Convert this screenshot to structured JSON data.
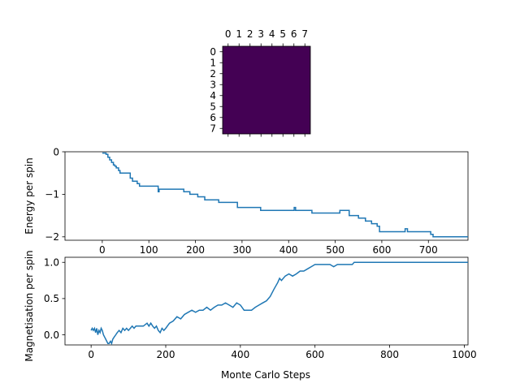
{
  "chart_data": [
    {
      "type": "heatmap",
      "rows": 8,
      "cols": 8,
      "values": [
        [
          1,
          1,
          1,
          1,
          1,
          1,
          1,
          1
        ],
        [
          1,
          1,
          1,
          1,
          1,
          1,
          1,
          1
        ],
        [
          1,
          1,
          1,
          1,
          1,
          1,
          1,
          1
        ],
        [
          1,
          1,
          1,
          1,
          1,
          1,
          1,
          1
        ],
        [
          1,
          1,
          1,
          1,
          1,
          1,
          1,
          1
        ],
        [
          1,
          1,
          1,
          1,
          1,
          1,
          1,
          1
        ],
        [
          1,
          1,
          1,
          1,
          1,
          1,
          1,
          1
        ],
        [
          1,
          1,
          1,
          1,
          1,
          1,
          1,
          1
        ]
      ],
      "x_ticks": [
        "0",
        "1",
        "2",
        "3",
        "4",
        "5",
        "6",
        "7"
      ],
      "y_ticks": [
        "0",
        "1",
        "2",
        "3",
        "4",
        "5",
        "6",
        "7"
      ],
      "x_tick_position": "top",
      "colormap": "viridis",
      "fill_color": "#440154"
    },
    {
      "type": "line",
      "ylabel": "Energy per spin",
      "xlim": [
        -80,
        785
      ],
      "ylim": [
        -2.08,
        0.0
      ],
      "xticks": [
        0,
        100,
        200,
        300,
        400,
        500,
        600,
        700
      ],
      "yticks": [
        0,
        -1,
        -2
      ],
      "ytick_labels": [
        "0",
        "−1",
        "−2"
      ],
      "line_color": "#1f77b4",
      "series": [
        {
          "x": [
            0,
            5,
            8,
            12,
            16,
            20,
            24,
            27,
            30,
            35,
            38,
            42,
            60,
            65,
            75,
            80,
            95,
            120,
            122,
            125,
            170,
            175,
            185,
            188,
            200,
            205,
            215,
            220,
            235,
            250,
            290,
            292,
            340,
            345,
            410,
            412,
            415,
            450,
            505,
            510,
            525,
            530,
            545,
            550,
            560,
            565,
            578,
            580,
            590,
            595,
            645,
            650,
            655,
            660,
            705,
            710,
            785
          ],
          "y": [
            -0.03,
            -0.03,
            -0.06,
            -0.13,
            -0.19,
            -0.25,
            -0.31,
            -0.34,
            -0.38,
            -0.44,
            -0.5,
            -0.5,
            -0.62,
            -0.69,
            -0.75,
            -0.81,
            -0.81,
            -0.94,
            -0.88,
            -0.88,
            -0.88,
            -0.94,
            -0.94,
            -1.0,
            -1.0,
            -1.06,
            -1.06,
            -1.13,
            -1.13,
            -1.19,
            -1.31,
            -1.31,
            -1.38,
            -1.38,
            -1.38,
            -1.31,
            -1.38,
            -1.44,
            -1.44,
            -1.38,
            -1.38,
            -1.5,
            -1.5,
            -1.56,
            -1.56,
            -1.63,
            -1.69,
            -1.69,
            -1.75,
            -1.88,
            -1.88,
            -1.81,
            -1.88,
            -1.88,
            -1.94,
            -2.0,
            -2.0
          ]
        }
      ]
    },
    {
      "type": "line",
      "xlabel": "Monte Carlo Steps",
      "ylabel": "Magnetisation per spin",
      "xlim": [
        -70,
        1010
      ],
      "ylim": [
        -0.14,
        1.07
      ],
      "xticks": [
        0,
        200,
        400,
        600,
        800,
        1000
      ],
      "yticks": [
        0.0,
        0.5,
        1.0
      ],
      "ytick_labels": [
        "0.0",
        "0.5",
        "1.0"
      ],
      "line_color": "#1f77b4",
      "series": [
        {
          "x": [
            0,
            3,
            6,
            9,
            12,
            15,
            18,
            21,
            24,
            27,
            30,
            33,
            36,
            39,
            42,
            45,
            48,
            52,
            55,
            58,
            62,
            66,
            70,
            75,
            80,
            85,
            90,
            95,
            100,
            105,
            110,
            115,
            120,
            130,
            140,
            150,
            155,
            160,
            165,
            170,
            175,
            180,
            185,
            190,
            195,
            200,
            210,
            220,
            230,
            240,
            250,
            260,
            270,
            280,
            290,
            300,
            310,
            320,
            330,
            340,
            350,
            360,
            370,
            380,
            390,
            400,
            410,
            420,
            430,
            440,
            450,
            460,
            470,
            480,
            490,
            500,
            505,
            510,
            520,
            530,
            540,
            550,
            560,
            570,
            580,
            590,
            600,
            610,
            620,
            640,
            650,
            660,
            700,
            705,
            710,
            800,
            900,
            1010
          ],
          "y": [
            0.06,
            0.09,
            0.06,
            0.09,
            0.03,
            0.09,
            0.0,
            0.06,
            0.03,
            0.09,
            0.06,
            0.0,
            -0.03,
            -0.06,
            -0.09,
            -0.12,
            -0.12,
            -0.09,
            -0.12,
            -0.06,
            -0.03,
            0.0,
            0.03,
            0.06,
            0.03,
            0.09,
            0.06,
            0.09,
            0.06,
            0.09,
            0.12,
            0.09,
            0.12,
            0.12,
            0.12,
            0.16,
            0.12,
            0.16,
            0.12,
            0.09,
            0.12,
            0.06,
            0.03,
            0.09,
            0.06,
            0.09,
            0.16,
            0.19,
            0.25,
            0.22,
            0.28,
            0.31,
            0.34,
            0.31,
            0.34,
            0.34,
            0.38,
            0.34,
            0.38,
            0.41,
            0.41,
            0.44,
            0.41,
            0.38,
            0.44,
            0.41,
            0.34,
            0.34,
            0.34,
            0.38,
            0.41,
            0.44,
            0.47,
            0.53,
            0.63,
            0.72,
            0.78,
            0.75,
            0.81,
            0.84,
            0.81,
            0.84,
            0.88,
            0.88,
            0.91,
            0.94,
            0.97,
            0.97,
            0.97,
            0.97,
            0.94,
            0.97,
            0.97,
            1.0,
            1.0,
            1.0,
            1.0,
            1.0
          ]
        }
      ]
    }
  ]
}
